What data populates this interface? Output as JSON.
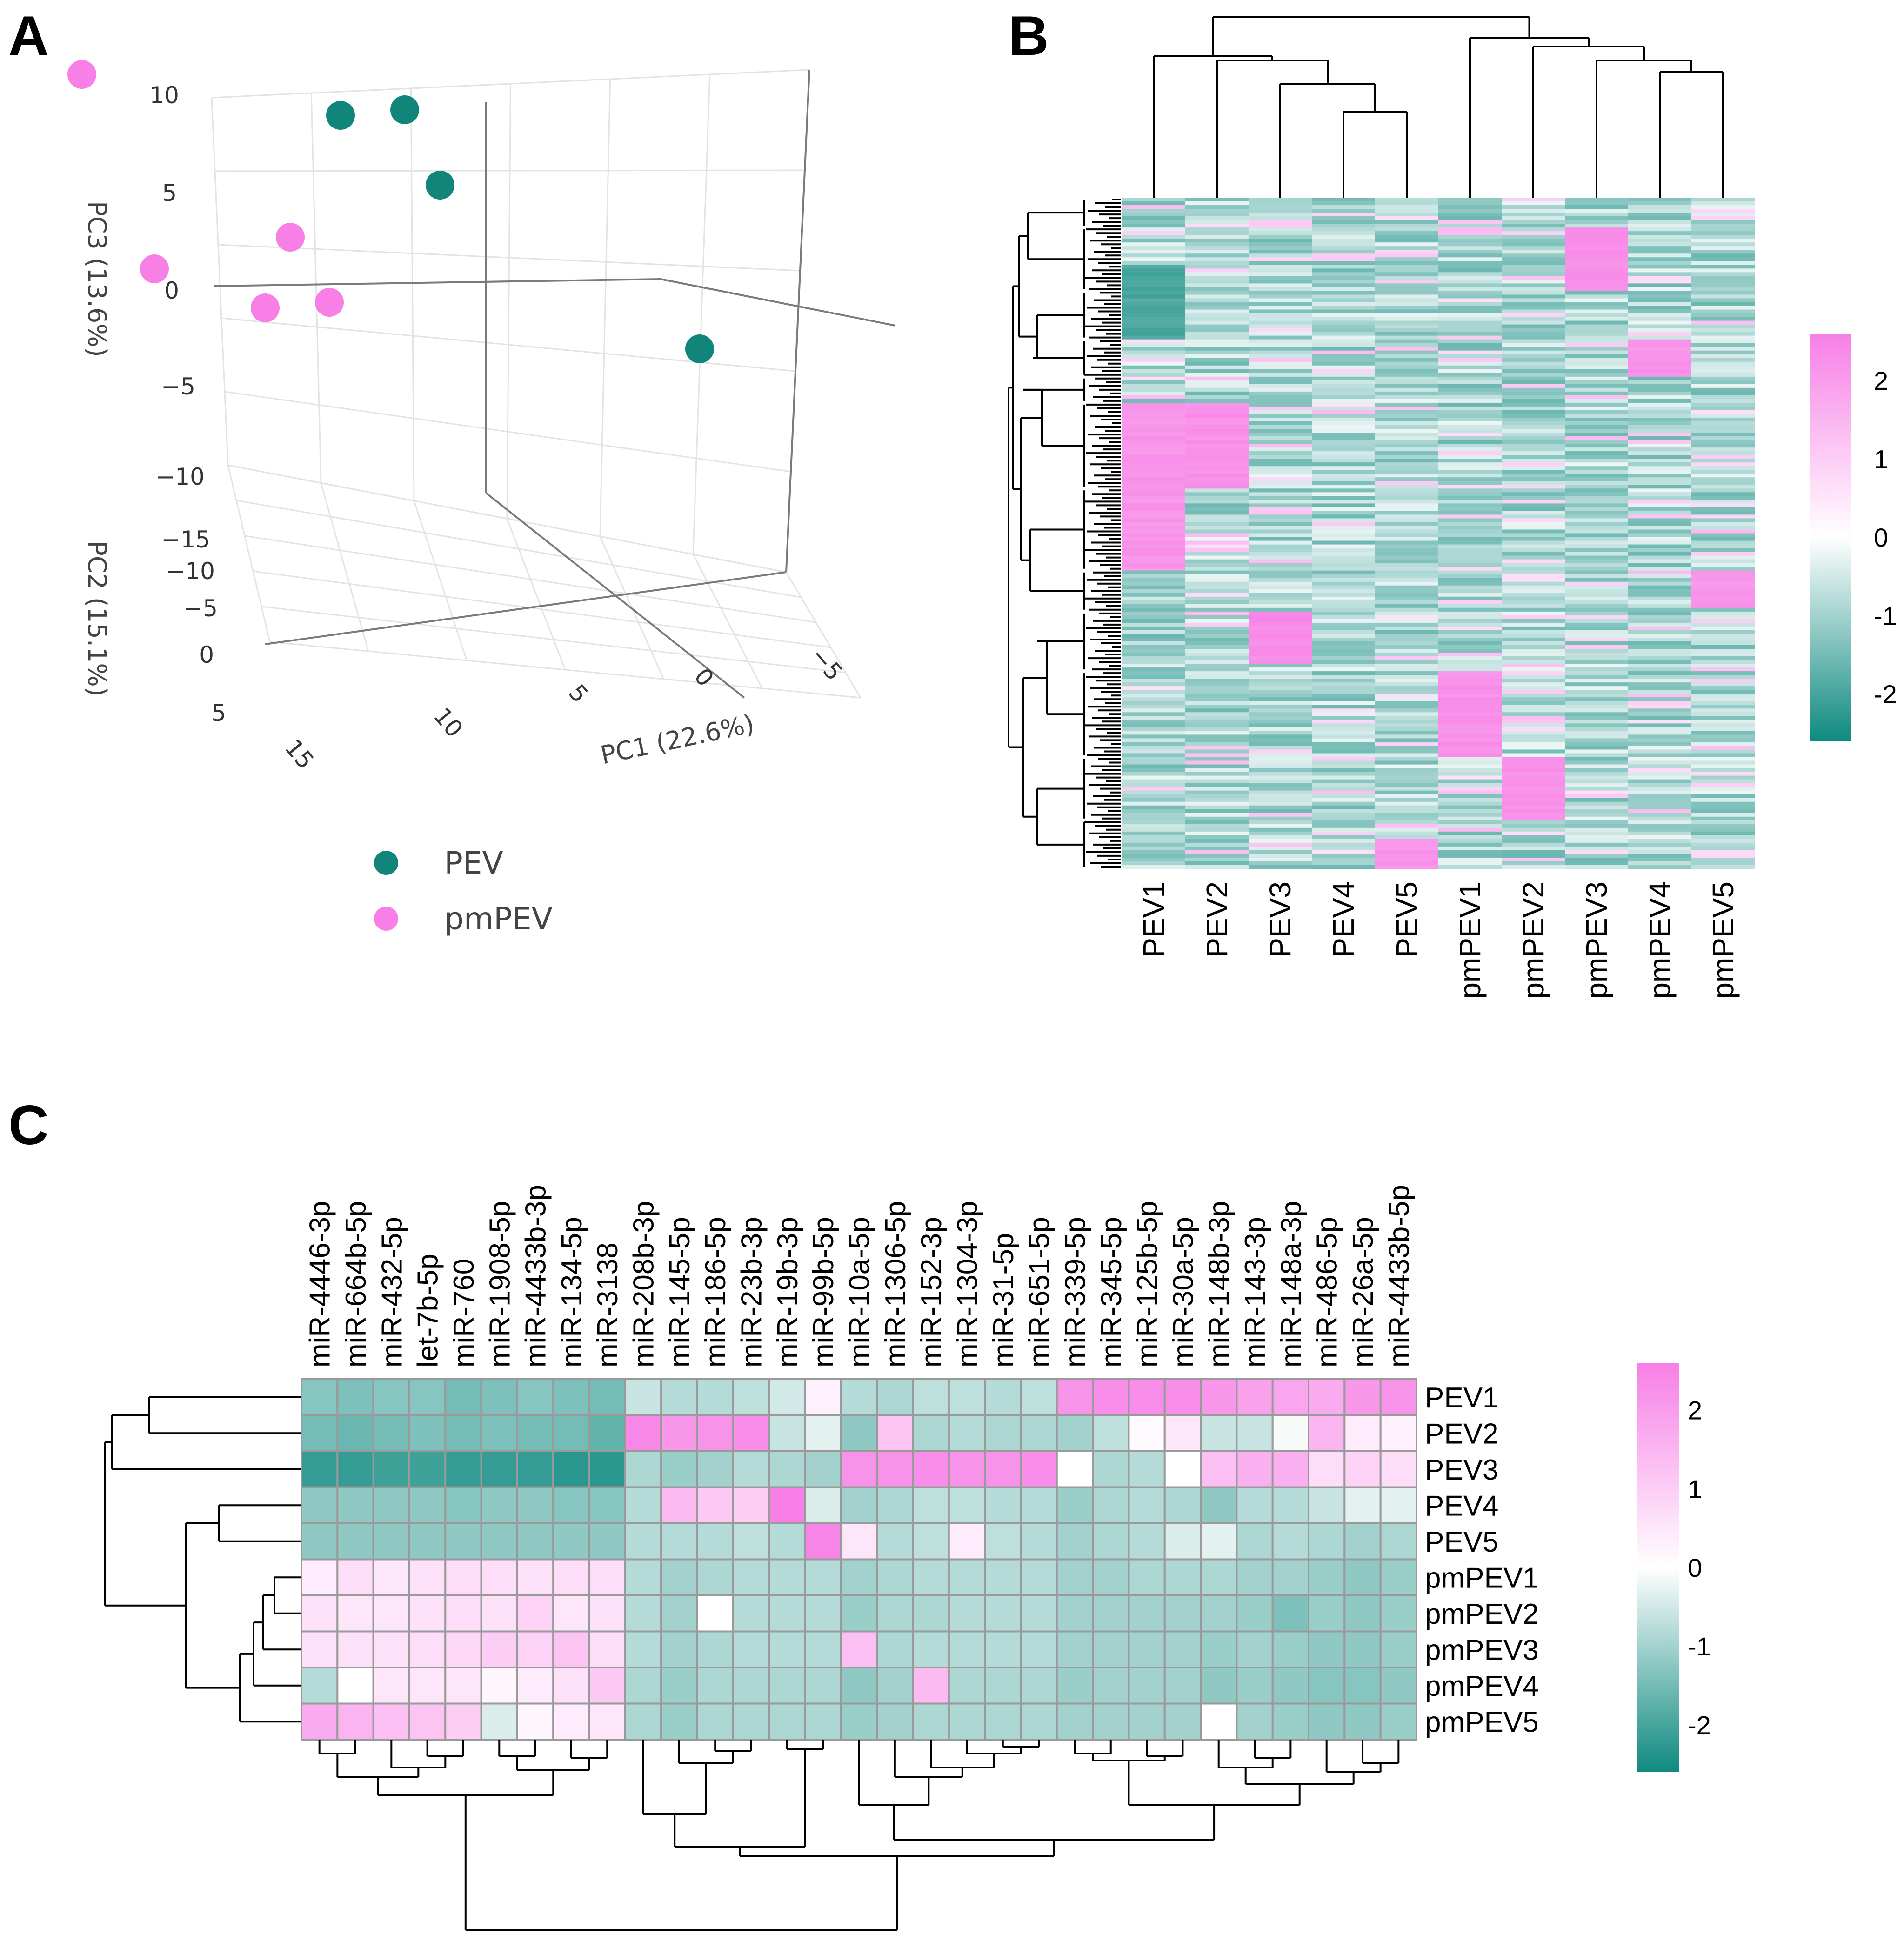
{
  "panel_labels": {
    "a": "A",
    "b": "B",
    "c": "C"
  },
  "colors": {
    "PEV": "#11857a",
    "pmPEV": "#f77fe6",
    "low": "#0f8a80",
    "mid": "#ffffff",
    "high": "#f77fe6",
    "grid": "#888888"
  },
  "chart_data": [
    {
      "type": "scatter",
      "title": "",
      "xlabel": "PC1 (22.6%)",
      "ylabel": "PC3 (13.6%)",
      "zlabel": "PC2 (15.1%)",
      "pc1_ticks": [
        "15",
        "10",
        "5",
        "0",
        "−5"
      ],
      "pc2_ticks": [
        "−15",
        "−10",
        "−5",
        "0",
        "5"
      ],
      "pc3_ticks": [
        "10",
        "5",
        "0",
        "−5",
        "−10"
      ],
      "legend": [
        {
          "name": "PEV",
          "color": "#11857a"
        },
        {
          "name": "pmPEV",
          "color": "#f77fe6"
        }
      ],
      "series": [
        {
          "name": "PEV",
          "points": [
            {
              "pc1": -8,
              "pc2": -14,
              "pc3": 12
            },
            {
              "pc1": -2,
              "pc2": -10,
              "pc3": 2
            },
            {
              "pc1": -5,
              "pc2": -10,
              "pc3": 2
            },
            {
              "pc1": -3,
              "pc2": -6,
              "pc3": 1
            },
            {
              "pc1": -6,
              "pc2": 4,
              "pc3": -1
            }
          ]
        },
        {
          "name": "pmPEV",
          "points": [
            {
              "pc1": 11,
              "pc2": -9,
              "pc3": 6
            },
            {
              "pc1": 14,
              "pc2": -2,
              "pc3": 1
            },
            {
              "pc1": 4,
              "pc2": -6,
              "pc3": -1
            },
            {
              "pc1": 7,
              "pc2": -4,
              "pc3": -3
            },
            {
              "pc1": 4,
              "pc2": -4,
              "pc3": -3
            }
          ]
        }
      ]
    },
    {
      "type": "heatmap",
      "title": "",
      "columns": [
        "PEV1",
        "PEV2",
        "PEV3",
        "PEV4",
        "PEV5",
        "pmPEV1",
        "pmPEV2",
        "pmPEV3",
        "pmPEV4",
        "pmPEV5"
      ],
      "row_count": 180,
      "blocks": [
        {
          "column": "PEV1",
          "row_start": 55,
          "row_end": 100,
          "value": 2.3
        },
        {
          "column": "PEV1",
          "row_start": 18,
          "row_end": 38,
          "value": -1.8
        },
        {
          "column": "PEV2",
          "row_start": 55,
          "row_end": 78,
          "value": 2.4
        },
        {
          "column": "PEV3",
          "row_start": 111,
          "row_end": 125,
          "value": 2.5
        },
        {
          "column": "PEV5",
          "row_start": 172,
          "row_end": 180,
          "value": 2.3
        },
        {
          "column": "pmPEV1",
          "row_start": 127,
          "row_end": 150,
          "value": 2.4
        },
        {
          "column": "pmPEV2",
          "row_start": 150,
          "row_end": 167,
          "value": 2.4
        },
        {
          "column": "pmPEV3",
          "row_start": 8,
          "row_end": 25,
          "value": 2.4
        },
        {
          "column": "pmPEV4",
          "row_start": 38,
          "row_end": 48,
          "value": 2.3
        },
        {
          "column": "pmPEV5",
          "row_start": 100,
          "row_end": 110,
          "value": 2.3
        }
      ],
      "colorbar_ticks": [
        "2",
        "1",
        "0",
        "-1",
        "-2"
      ],
      "colorbar_range": [
        -2.6,
        2.6
      ]
    },
    {
      "type": "heatmap",
      "title": "",
      "columns": [
        "miR-4446-3p",
        "miR-664b-5p",
        "miR-432-5p",
        "let-7b-5p",
        "miR-760",
        "miR-1908-5p",
        "miR-4433b-3p",
        "miR-134-5p",
        "miR-3138",
        "miR-208b-3p",
        "miR-145-5p",
        "miR-186-5p",
        "miR-23b-3p",
        "miR-19b-3p",
        "miR-99b-5p",
        "miR-10a-5p",
        "miR-1306-5p",
        "miR-152-3p",
        "miR-1304-3p",
        "miR-31-5p",
        "miR-651-5p",
        "miR-339-5p",
        "miR-345-5p",
        "miR-125b-5p",
        "miR-30a-5p",
        "miR-148b-3p",
        "miR-143-3p",
        "miR-148a-3p",
        "miR-486-5p",
        "miR-26a-5p",
        "miR-4433b-5p"
      ],
      "rows": [
        "PEV1",
        "PEV2",
        "PEV3",
        "PEV4",
        "PEV5",
        "pmPEV1",
        "pmPEV2",
        "pmPEV3",
        "pmPEV4",
        "pmPEV5"
      ],
      "values": [
        [
          -1.3,
          -1.4,
          -1.3,
          -1.3,
          -1.5,
          -1.4,
          -1.3,
          -1.4,
          -1.5,
          -0.6,
          -0.8,
          -0.8,
          -0.7,
          -0.5,
          0.3,
          -0.8,
          -0.9,
          -0.7,
          -0.7,
          -0.8,
          -0.7,
          2.2,
          2.3,
          2.3,
          2.3,
          2.1,
          1.9,
          1.8,
          1.7,
          2.1,
          2.2
        ],
        [
          -1.5,
          -1.6,
          -1.5,
          -1.4,
          -1.5,
          -1.4,
          -1.5,
          -1.5,
          -1.7,
          2.4,
          2.1,
          2.2,
          2.3,
          -0.6,
          -0.3,
          -1.2,
          1.2,
          -0.9,
          -0.8,
          -0.9,
          -0.9,
          -1.0,
          -0.7,
          0.1,
          0.5,
          -0.6,
          -0.6,
          -0.1,
          1.5,
          0.4,
          0.3
        ],
        [
          -2.2,
          -2.2,
          -2.1,
          -2.1,
          -2.2,
          -2.2,
          -2.2,
          -2.3,
          -2.3,
          -0.9,
          -1.1,
          -1.0,
          -0.8,
          -0.9,
          -1.0,
          2.2,
          2.2,
          2.3,
          2.2,
          2.2,
          2.3,
          0.0,
          -0.9,
          -0.8,
          0.0,
          1.3,
          1.6,
          1.6,
          0.7,
          0.9,
          0.7
        ],
        [
          -1.2,
          -1.2,
          -1.2,
          -1.2,
          -1.3,
          -1.2,
          -1.2,
          -1.3,
          -1.3,
          -0.8,
          1.4,
          1.1,
          1.0,
          2.6,
          -0.4,
          -1.0,
          -0.9,
          -0.7,
          -0.7,
          -0.8,
          -0.8,
          -1.1,
          -0.9,
          -0.8,
          -0.9,
          -1.2,
          -0.8,
          -0.8,
          -0.6,
          -0.3,
          -0.3
        ],
        [
          -1.2,
          -1.2,
          -1.2,
          -1.2,
          -1.2,
          -1.2,
          -1.2,
          -1.2,
          -1.2,
          -0.8,
          -0.8,
          -0.8,
          -0.7,
          -0.8,
          2.5,
          0.5,
          -0.8,
          -0.7,
          0.4,
          -0.7,
          -0.8,
          -1.0,
          -0.9,
          -0.8,
          -0.4,
          -0.3,
          -0.9,
          -0.8,
          -0.9,
          -1.0,
          -0.9
        ],
        [
          0.4,
          0.7,
          0.5,
          0.6,
          0.7,
          0.7,
          0.6,
          0.7,
          0.7,
          -0.8,
          -1.0,
          -0.9,
          -0.8,
          -0.8,
          -0.8,
          -1.0,
          -0.9,
          -0.8,
          -0.8,
          -0.8,
          -0.8,
          -1.0,
          -1.0,
          -0.9,
          -0.9,
          -0.9,
          -1.0,
          -1.0,
          -1.1,
          -1.2,
          -1.1
        ],
        [
          0.6,
          0.5,
          0.5,
          0.6,
          0.7,
          0.6,
          0.9,
          0.5,
          0.6,
          -0.8,
          -1.0,
          0.0,
          -0.8,
          -0.8,
          -0.8,
          -1.1,
          -0.9,
          -0.9,
          -0.8,
          -0.8,
          -0.8,
          -1.0,
          -1.0,
          -1.0,
          -1.0,
          -1.0,
          -1.1,
          -1.4,
          -1.1,
          -1.2,
          -1.1
        ],
        [
          0.6,
          0.6,
          0.6,
          0.7,
          0.8,
          1.0,
          0.9,
          1.2,
          0.7,
          -0.8,
          -1.0,
          -0.9,
          -0.8,
          -0.8,
          -0.8,
          1.3,
          -0.9,
          -0.8,
          -0.8,
          -0.8,
          -0.8,
          -1.0,
          -1.0,
          -1.0,
          -1.0,
          -1.1,
          -1.0,
          -1.1,
          -1.2,
          -1.2,
          -1.1
        ],
        [
          -0.8,
          0.0,
          0.5,
          0.5,
          0.5,
          0.2,
          0.4,
          0.6,
          1.1,
          -0.9,
          -1.1,
          -0.9,
          -0.9,
          -0.9,
          -0.9,
          -1.2,
          -1.0,
          1.4,
          -0.9,
          -0.9,
          -0.9,
          -1.1,
          -1.0,
          -1.0,
          -1.0,
          -1.2,
          -1.1,
          -1.2,
          -1.3,
          -1.3,
          -1.2
        ],
        [
          1.7,
          1.5,
          1.3,
          1.2,
          1.0,
          -0.4,
          0.2,
          0.4,
          0.5,
          -0.9,
          -1.1,
          -0.9,
          -0.9,
          -0.9,
          -0.9,
          -1.1,
          -1.0,
          -0.9,
          -0.9,
          -0.9,
          -0.9,
          -1.0,
          -1.0,
          -1.0,
          -1.0,
          0.0,
          -1.0,
          -1.1,
          -1.2,
          -1.2,
          -1.1
        ]
      ],
      "colorbar_ticks": [
        "2",
        "1",
        "0",
        "-1",
        "-2"
      ],
      "colorbar_range": [
        -2.6,
        2.6
      ]
    }
  ]
}
